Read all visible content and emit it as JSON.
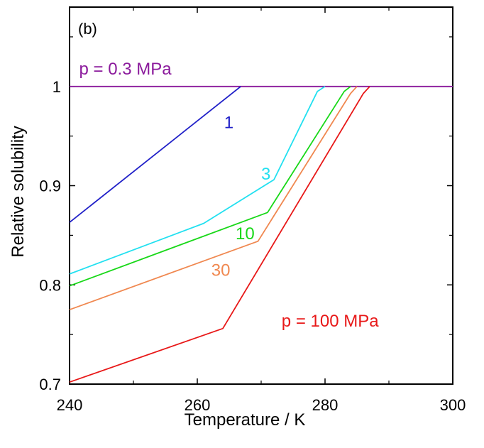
{
  "chart_data": {
    "type": "line",
    "panel_label": "(b)",
    "xlabel": "Temperature / K",
    "ylabel": "Relative solubility",
    "xlim": [
      240,
      300
    ],
    "ylim": [
      0.7,
      1.08
    ],
    "x_ticks": [
      240,
      260,
      280,
      300
    ],
    "x_tick_labels": [
      "240",
      "260",
      "280",
      "300"
    ],
    "y_ticks": [
      0.7,
      0.8,
      0.9,
      1.0
    ],
    "y_tick_labels": [
      "0.7",
      "0.8",
      "0.9",
      "1"
    ],
    "grid": false,
    "series": [
      {
        "label": "p = 0.3 MPa",
        "color": "#8b1a9c",
        "label_x": 241.5,
        "label_y": 1.012,
        "points": [
          [
            240,
            1.0
          ],
          [
            300,
            1.0
          ]
        ]
      },
      {
        "label": "1",
        "color": "#2020c8",
        "label_x": 264.2,
        "label_y": 0.958,
        "points": [
          [
            240,
            0.863
          ],
          [
            266.8,
            1.0
          ]
        ]
      },
      {
        "label": "3",
        "color": "#22e0f0",
        "label_x": 270.0,
        "label_y": 0.906,
        "points": [
          [
            240,
            0.811
          ],
          [
            261.0,
            0.862
          ],
          [
            272.0,
            0.906
          ],
          [
            278.8,
            0.995
          ],
          [
            280.0,
            1.0
          ]
        ]
      },
      {
        "label": "10",
        "color": "#18d818",
        "label_x": 266.0,
        "label_y": 0.846,
        "points": [
          [
            240,
            0.799
          ],
          [
            271.0,
            0.873
          ],
          [
            283.0,
            0.995
          ],
          [
            284.0,
            1.0
          ]
        ]
      },
      {
        "label": "30",
        "color": "#f08850",
        "label_x": 262.2,
        "label_y": 0.809,
        "points": [
          [
            240,
            0.775
          ],
          [
            269.5,
            0.844
          ],
          [
            284.0,
            0.993
          ],
          [
            285.0,
            1.0
          ]
        ]
      },
      {
        "label": "p = 100 MPa",
        "color": "#e81818",
        "label_x": 273.2,
        "label_y": 0.758,
        "points": [
          [
            240,
            0.702
          ],
          [
            264.0,
            0.756
          ],
          [
            286.0,
            0.993
          ],
          [
            287.0,
            1.0
          ]
        ]
      }
    ]
  }
}
